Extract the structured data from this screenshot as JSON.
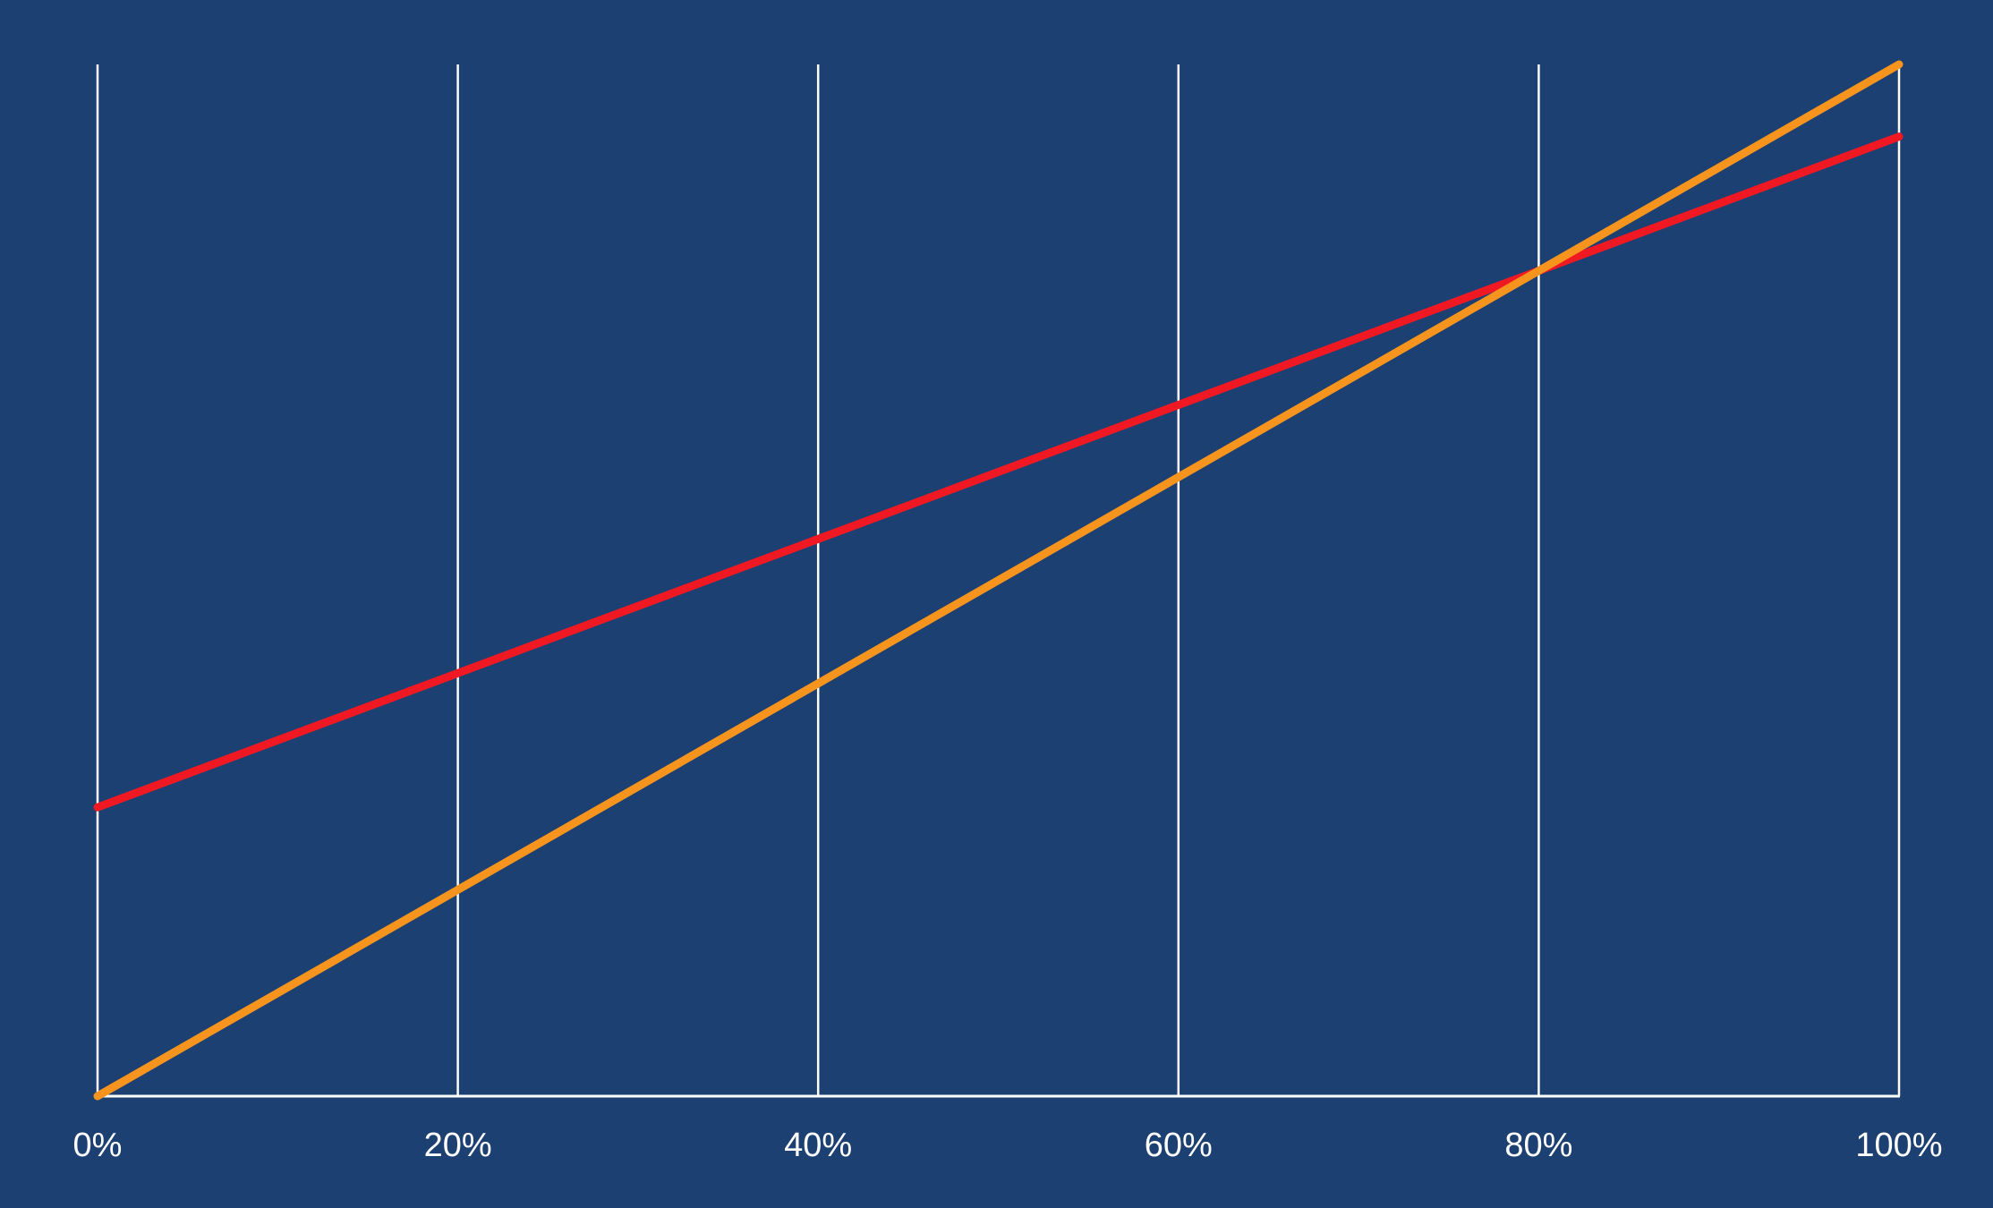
{
  "colors": {
    "background": "#1c4071",
    "grid": "#ffffff",
    "axis": "#ffffff",
    "tick_label": "#ffffff"
  },
  "chart_data": {
    "type": "line",
    "title": "",
    "xlabel": "",
    "ylabel": "",
    "x_ticks": [
      "0%",
      "20%",
      "40%",
      "60%",
      "80%",
      "100%"
    ],
    "xlim": [
      0,
      100
    ],
    "ylim": [
      0,
      100
    ],
    "grid": "vertical",
    "legend": "none",
    "series": [
      {
        "color": "#f01923",
        "x": [
          0,
          20,
          40,
          60,
          80,
          100
        ],
        "y": [
          28,
          41,
          54,
          67,
          80,
          93
        ]
      },
      {
        "color": "#f7941d",
        "x": [
          0,
          20,
          40,
          60,
          80,
          100
        ],
        "y": [
          0,
          20,
          40,
          60,
          80,
          100
        ]
      }
    ]
  }
}
